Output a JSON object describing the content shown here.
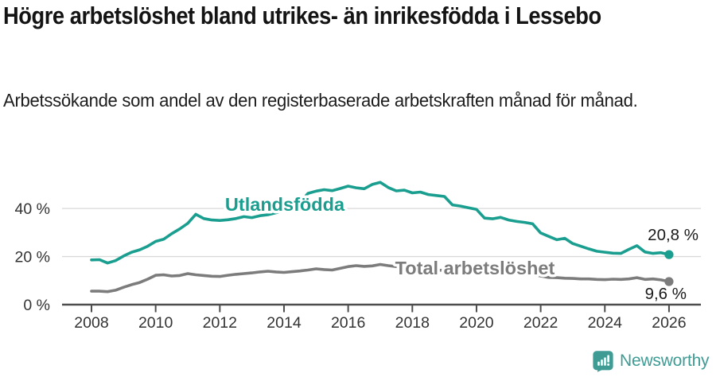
{
  "header": {
    "title": "Högre arbetslöshet bland utrikes- än inrikesfödda i Lessebo",
    "subtitle": "Arbetssökande som andel av den registerbaserade arbetskraften månad för månad."
  },
  "chart_data": {
    "type": "line",
    "title": "Högre arbetslöshet bland utrikes- än inrikesfödda i Lessebo",
    "xlabel": "",
    "ylabel": "",
    "x_unit": "year (quarterly points)",
    "x_start": 2008,
    "x_step": 0.25,
    "xlim": [
      2007.1,
      2027.0
    ],
    "ylim": [
      0,
      55
    ],
    "grid": "horizontal",
    "legend_position": "inline-labels",
    "y_ticks": [
      {
        "value": 0,
        "label": "0 %"
      },
      {
        "value": 20,
        "label": "20 %"
      },
      {
        "value": 40,
        "label": "40 %"
      }
    ],
    "x_ticks": [
      {
        "value": 2008,
        "label": "2008"
      },
      {
        "value": 2010,
        "label": "2010"
      },
      {
        "value": 2012,
        "label": "2012"
      },
      {
        "value": 2014,
        "label": "2014"
      },
      {
        "value": 2016,
        "label": "2016"
      },
      {
        "value": 2018,
        "label": "2018"
      },
      {
        "value": 2020,
        "label": "2020"
      },
      {
        "value": 2022,
        "label": "2022"
      },
      {
        "value": 2024,
        "label": "2024"
      },
      {
        "value": 2026,
        "label": "2026"
      }
    ],
    "series": [
      {
        "name": "Utlandsfödda",
        "color": "#1a9e8f",
        "end_label": "20,8 %",
        "end_value": 20.8,
        "values": [
          18.6,
          18.7,
          17.3,
          18.3,
          20.2,
          21.8,
          22.8,
          24.3,
          26.3,
          27.2,
          29.5,
          31.5,
          33.8,
          37.6,
          35.8,
          35.2,
          35.0,
          35.3,
          35.8,
          36.6,
          36.2,
          37.0,
          37.4,
          38.2,
          39.0,
          40.2,
          42.5,
          46.3,
          47.2,
          47.8,
          47.4,
          48.3,
          49.3,
          48.6,
          48.2,
          50.0,
          50.9,
          48.7,
          47.3,
          47.6,
          46.5,
          46.8,
          45.8,
          45.4,
          45.0,
          41.5,
          41.0,
          40.3,
          39.6,
          36.0,
          35.7,
          36.3,
          35.2,
          34.6,
          34.2,
          33.6,
          29.8,
          28.4,
          27.0,
          27.6,
          25.4,
          24.3,
          23.2,
          22.2,
          21.8,
          21.4,
          21.3,
          23.0,
          24.5,
          21.9,
          21.3,
          21.6,
          20.8
        ]
      },
      {
        "name": "Total arbetslöshet",
        "color": "#7c7c7c",
        "end_label": "9,6 %",
        "end_value": 9.6,
        "values": [
          5.6,
          5.6,
          5.4,
          6.0,
          7.2,
          8.3,
          9.2,
          10.6,
          12.2,
          12.4,
          11.9,
          12.1,
          12.9,
          12.4,
          12.1,
          11.8,
          11.7,
          12.2,
          12.6,
          12.9,
          13.2,
          13.6,
          13.9,
          13.6,
          13.4,
          13.7,
          14.0,
          14.4,
          14.9,
          14.6,
          14.4,
          15.1,
          15.8,
          16.2,
          15.9,
          16.1,
          16.7,
          16.2,
          15.8,
          15.4,
          15.2,
          15.0,
          14.7,
          14.4,
          14.2,
          13.9,
          13.7,
          13.9,
          14.3,
          15.2,
          15.4,
          15.0,
          14.4,
          13.8,
          13.2,
          12.6,
          11.9,
          11.3,
          11.2,
          11.0,
          10.9,
          10.7,
          10.7,
          10.5,
          10.4,
          10.6,
          10.5,
          10.7,
          11.2,
          10.5,
          10.7,
          10.3,
          9.6
        ]
      }
    ]
  },
  "footer": {
    "brand": "Newsworthy"
  },
  "colors": {
    "accent_teal": "#1a9e8f",
    "line_gray": "#7c7c7c",
    "grid": "#d9d9d9",
    "axis": "#4d4d4d",
    "tick_text": "#333333",
    "annotation_text": "#1a1a1a",
    "brand_teal": "#3f9c95",
    "background": "#ffffff"
  }
}
